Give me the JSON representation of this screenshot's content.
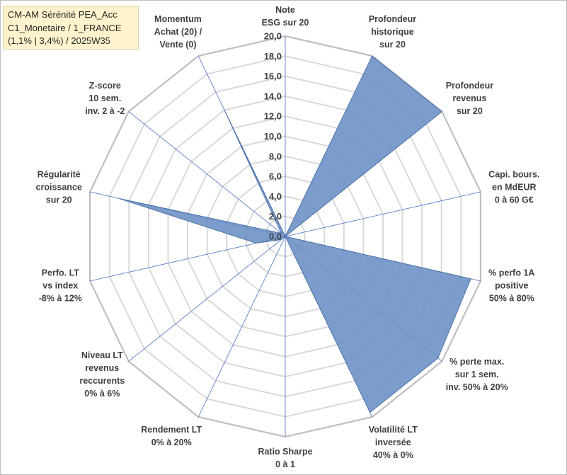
{
  "title": {
    "lines": [
      "CM-AM Sérénité PEA_Acc",
      "C1_Monetaire / 1_FRANCE",
      "(1,1% | 3,4%) / 2025W35"
    ]
  },
  "chart_data": {
    "type": "radar",
    "rmin": 0,
    "rmax": 20,
    "tick_step": 2,
    "ticks": [
      "0,0",
      "2,0",
      "4,0",
      "6,0",
      "8,0",
      "10,0",
      "12,0",
      "14,0",
      "16,0",
      "18,0",
      "20,0"
    ],
    "grid": true,
    "fill_color": "#6a8fc4",
    "stroke_color": "#4f73ab",
    "axes": [
      {
        "label": [
          "Note",
          "ESG sur 20"
        ],
        "value": 0
      },
      {
        "label": [
          "Profondeur",
          "historique",
          "sur 20"
        ],
        "value": 20
      },
      {
        "label": [
          "Profondeur",
          "revenus",
          "sur 20"
        ],
        "value": 20
      },
      {
        "label": [
          "Capi. bours.",
          "en MdEUR",
          "0 à 60 G€"
        ],
        "value": 0
      },
      {
        "label": [
          "% perfo 1A",
          "positive",
          "50% à 80%"
        ],
        "value": 19
      },
      {
        "label": [
          "% perte max.",
          "sur 1 sem.",
          "inv. 50% à 20%"
        ],
        "value": 19.5
      },
      {
        "label": [
          "Volatilité LT",
          "inversée",
          "40% à 0%"
        ],
        "value": 19.5
      },
      {
        "label": [
          "Ratio Sharpe",
          "0 à 1"
        ],
        "value": 0
      },
      {
        "label": [
          "Rendement LT",
          "0% à 20%"
        ],
        "value": 0
      },
      {
        "label": [
          "Niveau LT",
          "revenus",
          "reccurents",
          "0% à 6%"
        ],
        "value": 0.5
      },
      {
        "label": [
          "Perfo. LT",
          "vs index",
          "-8% à 12%"
        ],
        "value": 3
      },
      {
        "label": [
          "Régularité",
          "croissance",
          "sur 20"
        ],
        "value": 17
      },
      {
        "label": [
          "Z-score",
          "10 sem.",
          "inv. 2 à -2"
        ],
        "value": 0.5
      },
      {
        "label": [
          "Momentum",
          "Achat (20) /",
          "Vente (0)"
        ],
        "value": 14
      }
    ]
  }
}
